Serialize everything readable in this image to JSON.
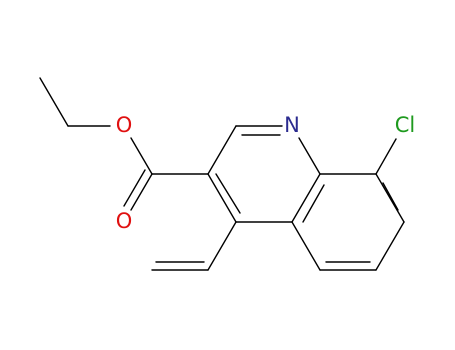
{
  "atoms": [
    {
      "label": "N"
    },
    {
      "label": "Cl"
    },
    {
      "label": "O"
    },
    {
      "label": "O"
    }
  ]
}
